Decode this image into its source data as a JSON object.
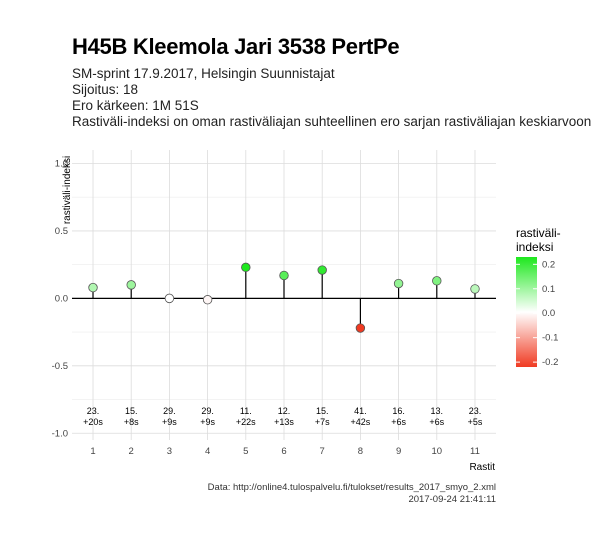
{
  "chart_data": {
    "type": "scatter",
    "title": "H45B Kleemola Jari 3538 PertPe",
    "subtitle": [
      "SM-sprint 17.9.2017, Helsingin Suunnistajat",
      "Sijoitus: 18",
      "Ero kärkeen: 1M 51S",
      "Rastiväli-indeksi on oman rastiväliajan suhteellinen ero sarjan rastiväliajan keskiarvoon"
    ],
    "xlabel": "Rastit",
    "ylabel": "rastiväli-indeksi",
    "x": [
      1,
      2,
      3,
      4,
      5,
      6,
      7,
      8,
      9,
      10,
      11
    ],
    "x_ticks": [
      "1",
      "2",
      "3",
      "4",
      "5",
      "6",
      "7",
      "8",
      "9",
      "10",
      "11"
    ],
    "values": [
      0.08,
      0.1,
      0.0,
      -0.01,
      0.23,
      0.17,
      0.21,
      -0.22,
      0.11,
      0.13,
      0.07
    ],
    "ylim": [
      -1.05,
      1.1
    ],
    "y_ticks": [
      1.0,
      0.5,
      0.0,
      -0.5,
      -1.0
    ],
    "y_tick_labels": [
      "1.0",
      "0.5",
      "0.0",
      "-0.5",
      "-1.0"
    ],
    "point_labels": [
      [
        "23.",
        "+20s"
      ],
      [
        "15.",
        "+8s"
      ],
      [
        "29.",
        "+9s"
      ],
      [
        "29.",
        "+9s"
      ],
      [
        "11.",
        "+22s"
      ],
      [
        "12.",
        "+13s"
      ],
      [
        "15.",
        "+7s"
      ],
      [
        "41.",
        "+42s"
      ],
      [
        "16.",
        "+6s"
      ],
      [
        "13.",
        "+6s"
      ],
      [
        "23.",
        "+5s"
      ]
    ],
    "grid": true,
    "legend": {
      "title": [
        "rastiväli-",
        "indeksi"
      ],
      "ticks": [
        0.2,
        0.1,
        0.0,
        -0.1,
        -0.2
      ],
      "tick_labels": [
        "0.2",
        "0.1",
        "0.0",
        "-0.1",
        "-0.2"
      ],
      "range": [
        -0.22,
        0.23
      ],
      "placement": "right",
      "high_color": "#1ee81e",
      "mid_color": "#ffffff",
      "low_color": "#f03a22"
    }
  },
  "caption": [
    "Data: http://online4.tulospalvelu.fi/tulokset/results_2017_smyo_2.xml",
    "2017-09-24 21:41:11"
  ]
}
